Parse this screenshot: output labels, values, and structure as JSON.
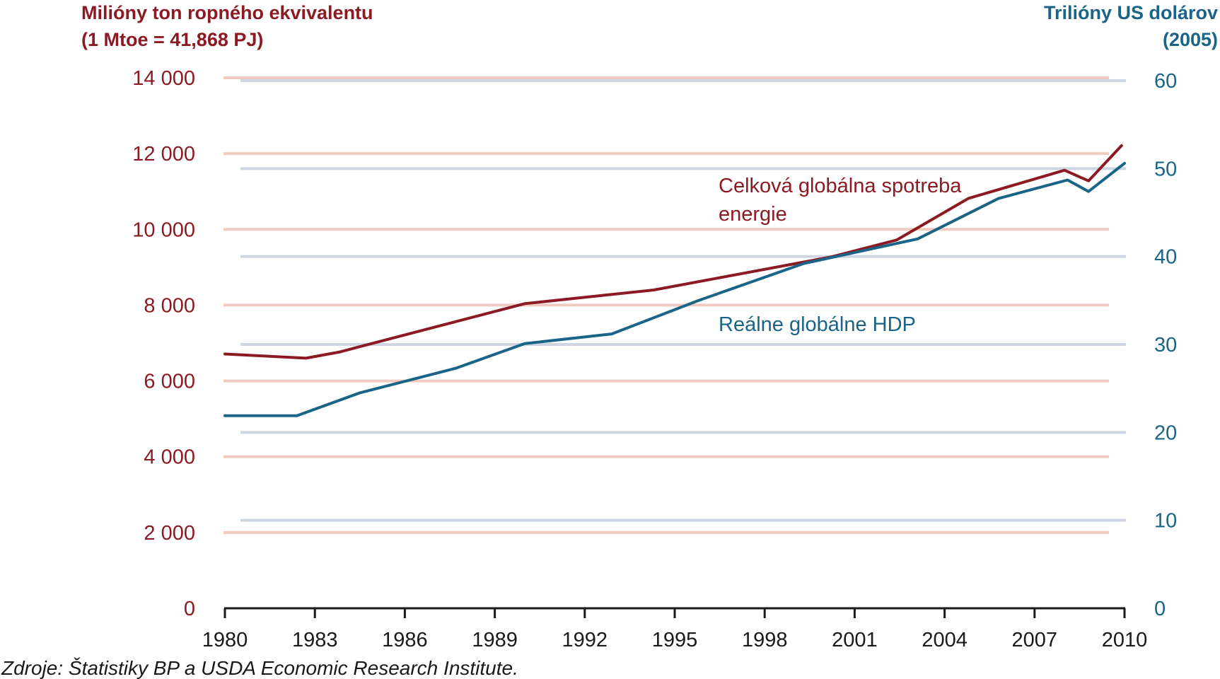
{
  "colors": {
    "energy": "#8c1a22",
    "gdp": "#1a6488",
    "energy_grid": "#efcbc0",
    "gdp_grid": "#cdd6e2",
    "axis": "#1a1a1a",
    "text": "#1a1a1a"
  },
  "chart_data": {
    "type": "line",
    "y_left": {
      "title_line1": "Milióny ton ropného ekvivalentu",
      "title_line2": "(1 Mtoe = 41,868 PJ)",
      "range": [
        0,
        14000
      ],
      "ticks": [
        0,
        2000,
        4000,
        6000,
        8000,
        10000,
        12000,
        14000
      ],
      "tick_labels": [
        "0",
        "2 000",
        "4 000",
        "6 000",
        "8 000",
        "10 000",
        "12 000",
        "14 000"
      ]
    },
    "y_right": {
      "title_line1": "Trilióny US dolárov",
      "title_line2": "(2005)",
      "range": [
        0,
        60
      ],
      "ticks": [
        0,
        10,
        20,
        30,
        40,
        50,
        60
      ],
      "tick_labels": [
        "0",
        "10",
        "20",
        "30",
        "40",
        "50",
        "60"
      ]
    },
    "x_axis": {
      "range": [
        1980,
        2010
      ],
      "ticks": [
        1980,
        1983,
        1986,
        1989,
        1992,
        1995,
        1998,
        2001,
        2004,
        2007,
        2010
      ],
      "tick_labels": [
        "1980",
        "1983",
        "1986",
        "1989",
        "1992",
        "1995",
        "1998",
        "2001",
        "2004",
        "2007",
        "2010"
      ]
    },
    "grid": true,
    "series": [
      {
        "name": "Celková globálna spotreba energie",
        "label_line1": "Celková globálna spotreba",
        "label_line2": "energie",
        "axis": "left",
        "x": [
          1980,
          1982.7,
          1983.8,
          1990,
          1994.3,
          2000.2,
          2002.4,
          2004.8,
          2008,
          2008.8,
          2009.9
        ],
        "y": [
          6710,
          6600,
          6760,
          8040,
          8400,
          9270,
          9720,
          10820,
          11560,
          11280,
          12210
        ]
      },
      {
        "name": "Reálne globálne HDP",
        "label_line1": "Reálne globálne HDP",
        "axis": "right",
        "x": [
          1980,
          1982.4,
          1984.5,
          1987.7,
          1990,
          1992.9,
          1995.8,
          1999.3,
          2003.1,
          2005.8,
          2008.1,
          2008.8,
          2010
        ],
        "y": [
          21.9,
          21.9,
          24.5,
          27.3,
          30.1,
          31.2,
          35.0,
          39.2,
          42.0,
          46.6,
          48.7,
          47.4,
          50.6
        ]
      }
    ],
    "source": "Zdroje: Štatistiky BP a USDA Economic Research Institute."
  }
}
